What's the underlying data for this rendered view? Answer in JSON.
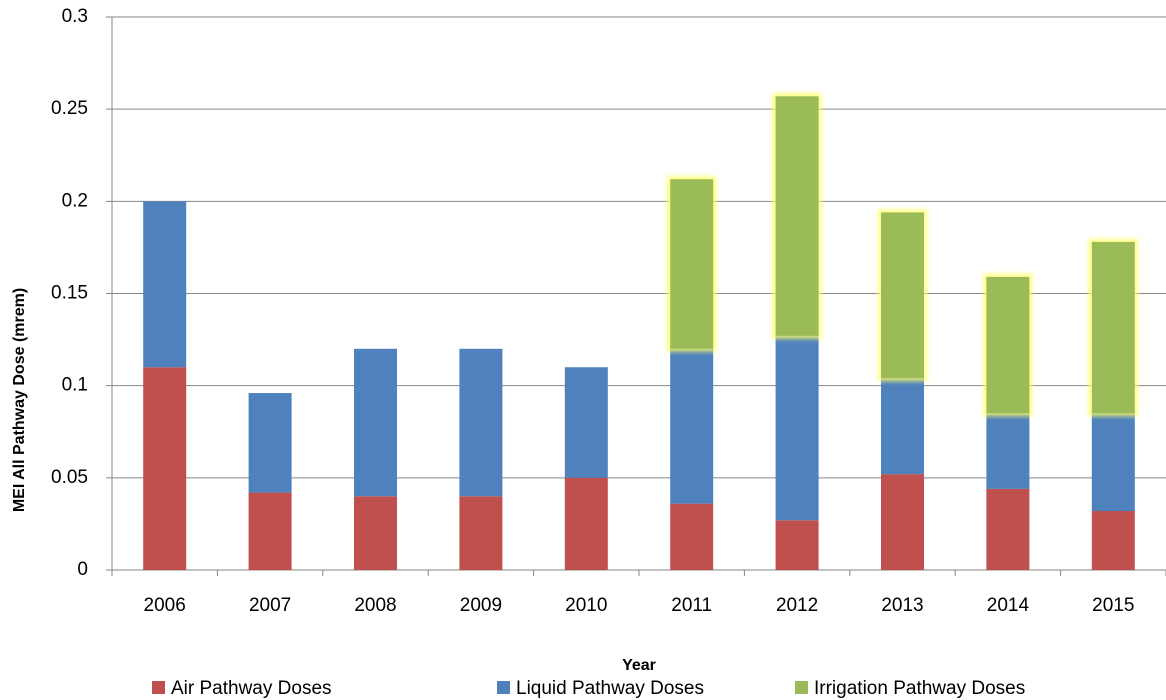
{
  "chart_data": {
    "type": "stacked_bar",
    "x_label": "Year",
    "y_label": "MEI All Pathway Dose (mrem)",
    "categories": [
      "2006",
      "2007",
      "2008",
      "2009",
      "2010",
      "2011",
      "2012",
      "2013",
      "2014",
      "2015"
    ],
    "series": [
      {
        "name": "Air Pathway Doses",
        "color": "#c0504d",
        "values": [
          0.11,
          0.042,
          0.04,
          0.04,
          0.05,
          0.036,
          0.027,
          0.052,
          0.044,
          0.032
        ]
      },
      {
        "name": "Liquid Pathway Doses",
        "color": "#4f81bd",
        "values": [
          0.09,
          0.054,
          0.08,
          0.08,
          0.06,
          0.084,
          0.1,
          0.052,
          0.041,
          0.053
        ]
      },
      {
        "name": "Irrigation Pathway Doses",
        "color": "#9bbb59",
        "values": [
          0,
          0,
          0,
          0,
          0,
          0.092,
          0.13,
          0.09,
          0.074,
          0.093
        ]
      }
    ],
    "ylim": [
      0,
      0.3
    ],
    "yticks": [
      0,
      0.05,
      0.1,
      0.15,
      0.2,
      0.25,
      0.3
    ],
    "grid": true,
    "legend": "bottom"
  }
}
